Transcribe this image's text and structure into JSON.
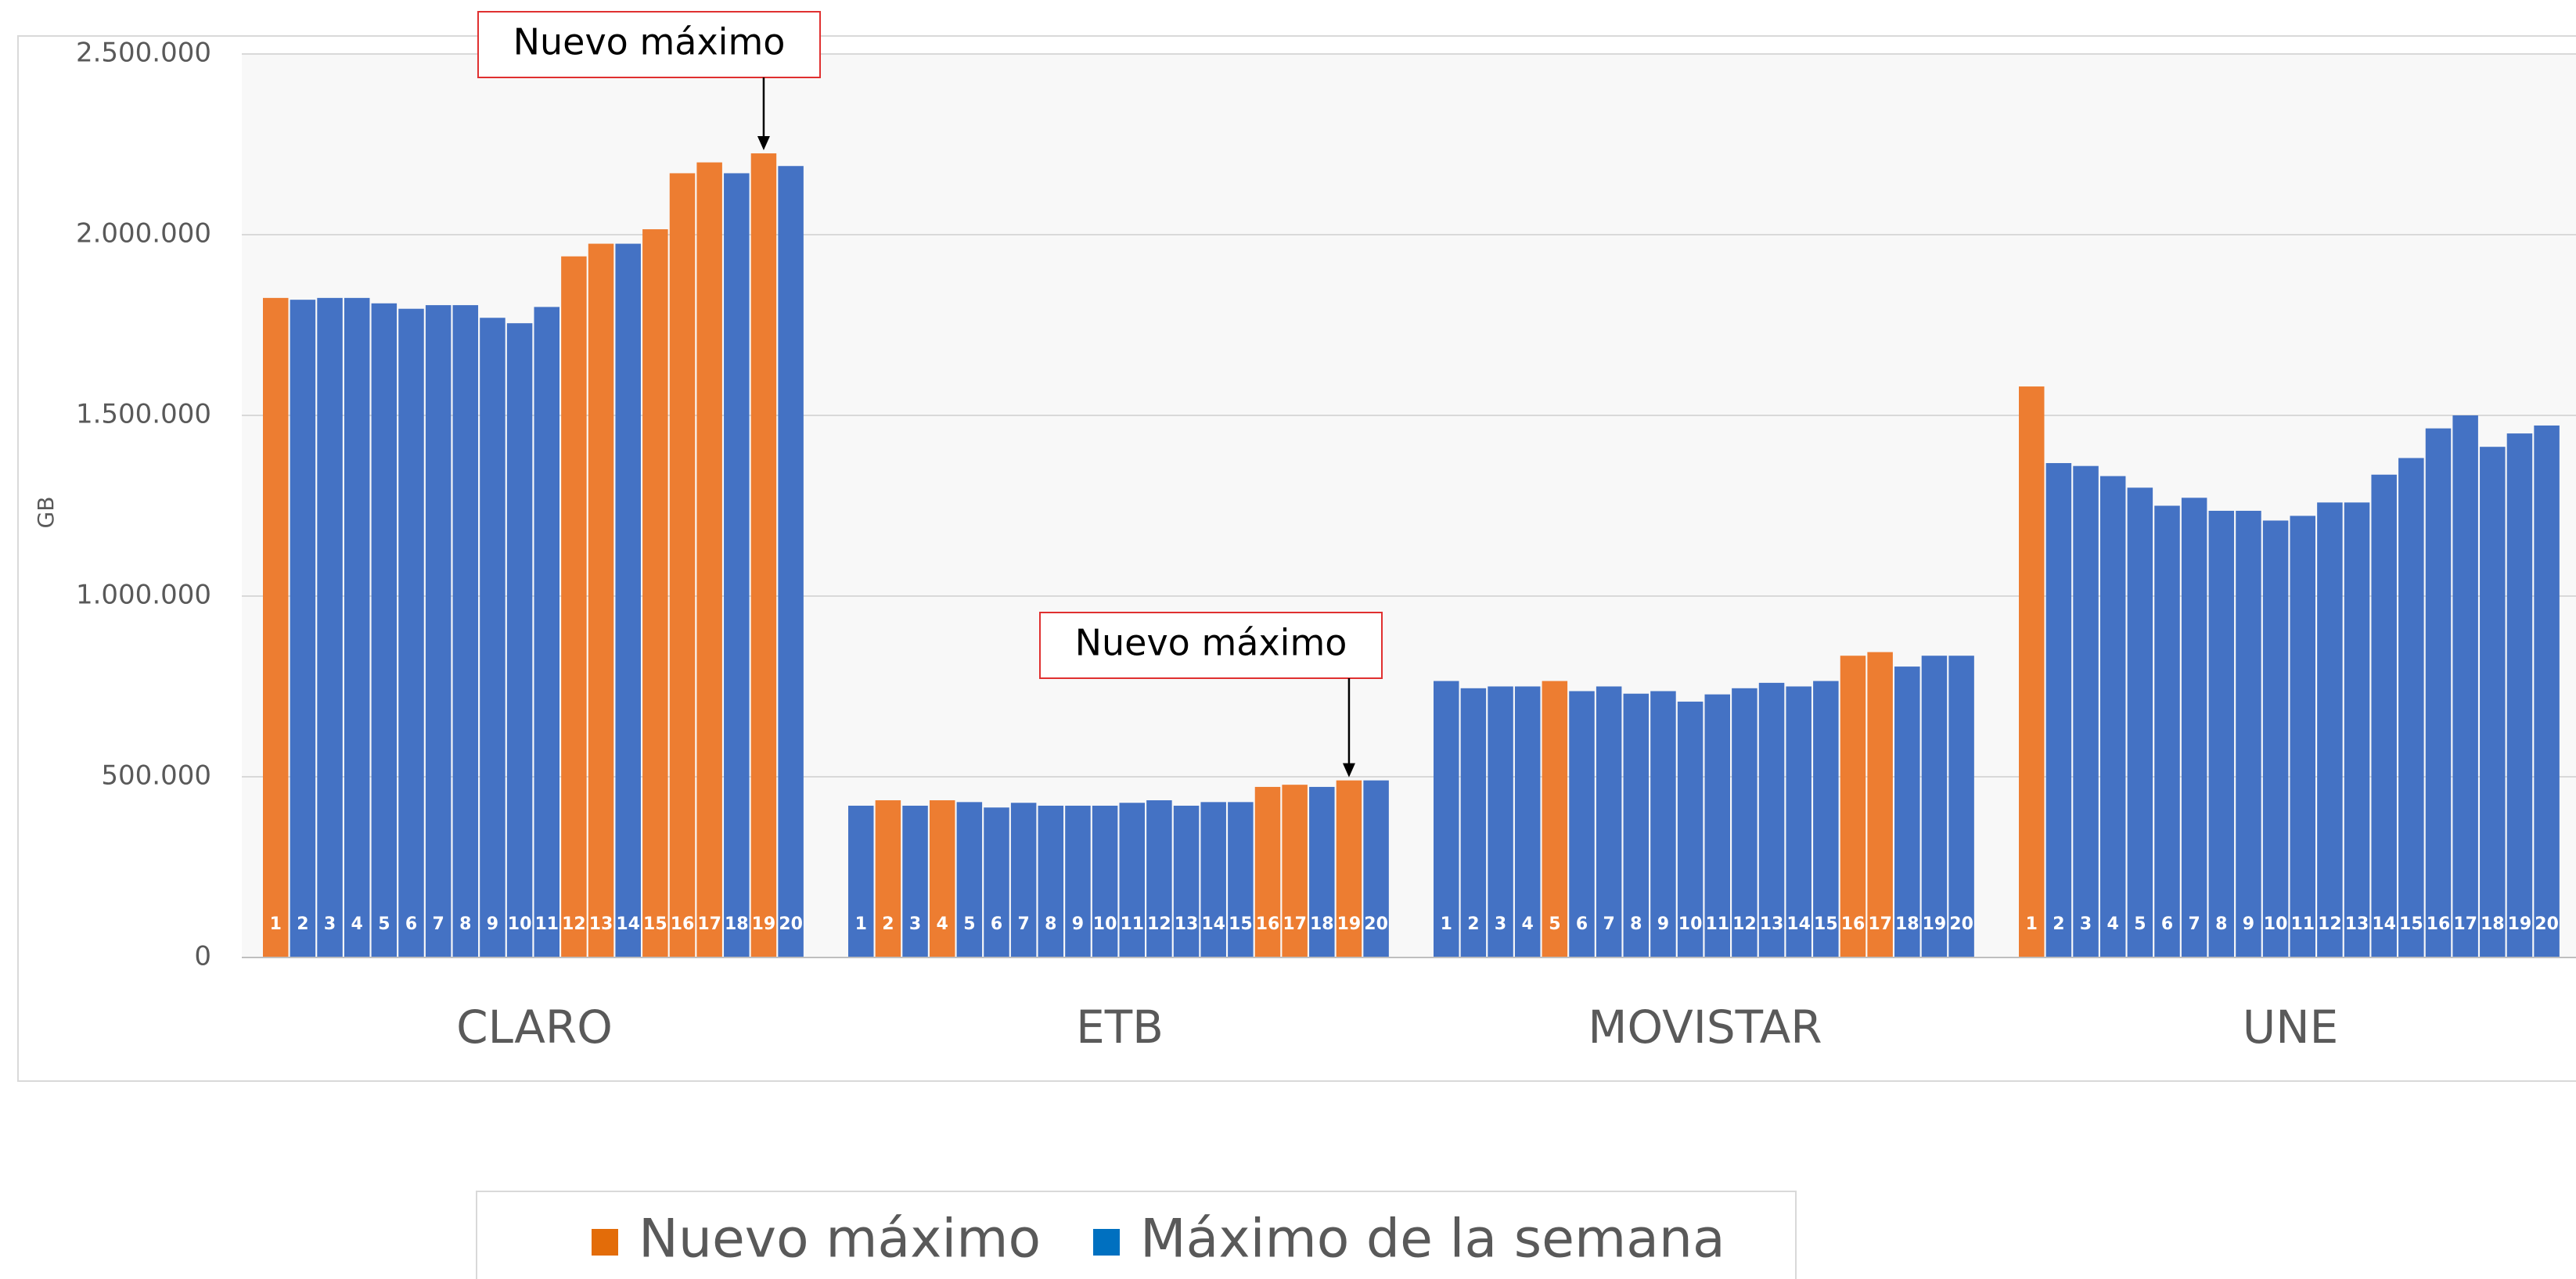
{
  "chart_data": {
    "type": "grouped-bar",
    "y_label": "GB",
    "ylim": [
      0,
      2500000
    ],
    "yticks": [
      0,
      {
        "value": 500000,
        "label": "500.000"
      },
      {
        "value": 1000000,
        "label": "1.000.000"
      },
      {
        "value": 1500000,
        "label": "1.500.000"
      },
      {
        "value": 2000000,
        "label": "2.000.000"
      },
      {
        "value": 2500000,
        "label": "2.500.000"
      }
    ],
    "grid": true,
    "legend": [
      {
        "name": "Nuevo máximo",
        "color": "#e36c09"
      },
      {
        "name": "Máximo de la semana",
        "color": "#0070c0"
      }
    ],
    "annotations": [
      "Nuevo máximo",
      "Nuevo máximo"
    ],
    "groups": [
      {
        "name": "CLARO",
        "categories": [
          1,
          2,
          3,
          4,
          5,
          6,
          7,
          8,
          9,
          10,
          11,
          12,
          13,
          14,
          15,
          16,
          17,
          18,
          19,
          20
        ],
        "values": [
          1825000,
          1820000,
          1825000,
          1825000,
          1810000,
          1795000,
          1805000,
          1805000,
          1770000,
          1755000,
          1800000,
          1940000,
          1975000,
          1975000,
          2015000,
          2170000,
          2200000,
          2170000,
          2225000,
          2190000
        ],
        "colors": [
          "#ed7d31",
          "#4472c4",
          "#4472c4",
          "#4472c4",
          "#4472c4",
          "#4472c4",
          "#4472c4",
          "#4472c4",
          "#4472c4",
          "#4472c4",
          "#4472c4",
          "#ed7d31",
          "#ed7d31",
          "#4472c4",
          "#ed7d31",
          "#ed7d31",
          "#ed7d31",
          "#4472c4",
          "#ed7d31",
          "#4472c4"
        ]
      },
      {
        "name": "ETB",
        "categories": [
          1,
          2,
          3,
          4,
          5,
          6,
          7,
          8,
          9,
          10,
          11,
          12,
          13,
          14,
          15,
          16,
          17,
          18,
          19,
          20
        ],
        "values": [
          420000,
          435000,
          420000,
          435000,
          430000,
          415000,
          428000,
          420000,
          420000,
          420000,
          428000,
          435000,
          420000,
          430000,
          430000,
          472000,
          478000,
          472000,
          490000,
          490000
        ],
        "colors": [
          "#4472c4",
          "#ed7d31",
          "#4472c4",
          "#ed7d31",
          "#4472c4",
          "#4472c4",
          "#4472c4",
          "#4472c4",
          "#4472c4",
          "#4472c4",
          "#4472c4",
          "#4472c4",
          "#4472c4",
          "#4472c4",
          "#4472c4",
          "#ed7d31",
          "#ed7d31",
          "#4472c4",
          "#ed7d31",
          "#4472c4"
        ]
      },
      {
        "name": "MOVISTAR",
        "categories": [
          1,
          2,
          3,
          4,
          5,
          6,
          7,
          8,
          9,
          10,
          11,
          12,
          13,
          14,
          15,
          16,
          17,
          18,
          19,
          20
        ],
        "values": [
          765000,
          745000,
          750000,
          750000,
          765000,
          737000,
          750000,
          730000,
          737000,
          708000,
          728000,
          745000,
          760000,
          750000,
          765000,
          835000,
          845000,
          805000,
          835000,
          835000
        ],
        "colors": [
          "#4472c4",
          "#4472c4",
          "#4472c4",
          "#4472c4",
          "#ed7d31",
          "#4472c4",
          "#4472c4",
          "#4472c4",
          "#4472c4",
          "#4472c4",
          "#4472c4",
          "#4472c4",
          "#4472c4",
          "#4472c4",
          "#4472c4",
          "#ed7d31",
          "#ed7d31",
          "#4472c4",
          "#4472c4",
          "#4472c4"
        ]
      },
      {
        "name": "UNE",
        "categories": [
          1,
          2,
          3,
          4,
          5,
          6,
          7,
          8,
          9,
          10,
          11,
          12,
          13,
          14,
          15,
          16,
          17,
          18,
          19,
          20
        ],
        "values": [
          1580000,
          1368000,
          1360000,
          1332000,
          1300000,
          1250000,
          1272000,
          1236000,
          1236000,
          1209000,
          1222000,
          1259000,
          1259000,
          1336000,
          1382000,
          1464000,
          1500000,
          1413000,
          1450000,
          1472000
        ],
        "colors": [
          "#ed7d31",
          "#4472c4",
          "#4472c4",
          "#4472c4",
          "#4472c4",
          "#4472c4",
          "#4472c4",
          "#4472c4",
          "#4472c4",
          "#4472c4",
          "#4472c4",
          "#4472c4",
          "#4472c4",
          "#4472c4",
          "#4472c4",
          "#4472c4",
          "#4472c4",
          "#4472c4",
          "#4472c4",
          "#4472c4"
        ]
      }
    ]
  }
}
